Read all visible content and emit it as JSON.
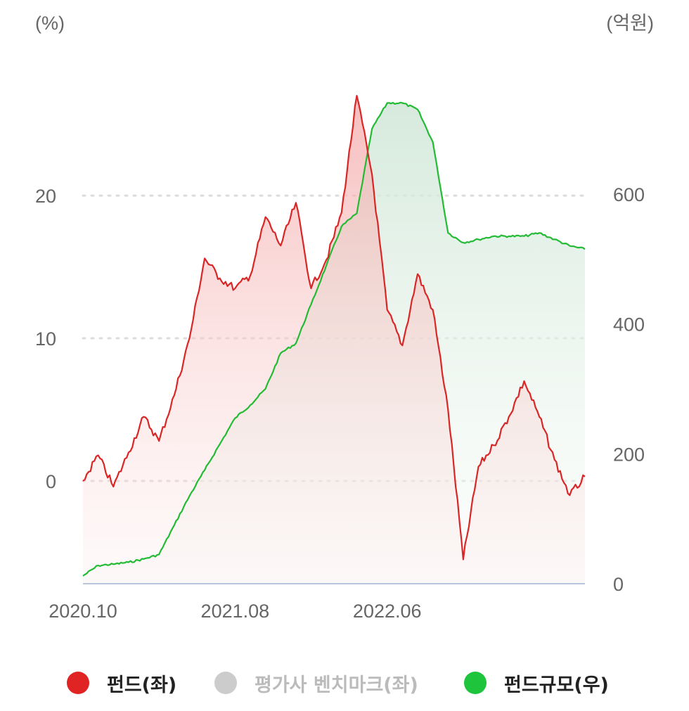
{
  "chart_data": {
    "type": "line",
    "left_axis": {
      "unit_label": "(%)",
      "ticks": [
        0,
        10,
        20
      ],
      "tick_labels": [
        "0",
        "10",
        "20"
      ],
      "range": [
        -7.2,
        27.4
      ]
    },
    "right_axis": {
      "unit_label": "(억원)",
      "ticks": [
        0,
        200,
        400,
        600
      ],
      "tick_labels": [
        "0",
        "200",
        "400",
        "600"
      ],
      "range": [
        0,
        760
      ]
    },
    "x_axis": {
      "tick_labels": [
        "2020.10",
        "2021.08",
        "2022.06"
      ],
      "range": [
        "2020-10",
        "2023-07"
      ]
    },
    "grid": "horizontal dotted at left-axis ticks",
    "legend_position": "bottom",
    "series": [
      {
        "name": "펀드(좌)",
        "axis": "left",
        "color": "#d92626",
        "fill": "area",
        "x": [
          "2020-10",
          "2020-11",
          "2020-12",
          "2021-01",
          "2021-02",
          "2021-03",
          "2021-04",
          "2021-05",
          "2021-06",
          "2021-07",
          "2021-08",
          "2021-09",
          "2021-10",
          "2021-11",
          "2021-12",
          "2022-01",
          "2022-02",
          "2022-03",
          "2022-04",
          "2022-05",
          "2022-06",
          "2022-07",
          "2022-08",
          "2022-09",
          "2022-10",
          "2022-11",
          "2022-12",
          "2023-01",
          "2023-02",
          "2023-03",
          "2023-04",
          "2023-05",
          "2023-06",
          "2023-07"
        ],
        "values": [
          0.0,
          1.8,
          -0.4,
          2.0,
          4.5,
          2.8,
          6.0,
          10.0,
          15.6,
          14.2,
          13.5,
          14.4,
          18.5,
          16.5,
          19.5,
          13.5,
          15.5,
          18.8,
          27.0,
          21.5,
          12.0,
          9.5,
          14.5,
          12.0,
          5.0,
          -5.5,
          1.0,
          2.5,
          4.5,
          7.0,
          4.5,
          1.5,
          -1.0,
          0.3
        ]
      },
      {
        "name": "평가사 벤치마크(좌)",
        "axis": "left",
        "color": "#c8c8c8",
        "fill": "none",
        "x": [],
        "values": []
      },
      {
        "name": "펀드규모(우)",
        "axis": "right",
        "color": "#22bb33",
        "fill": "area",
        "x": [
          "2020-10",
          "2020-11",
          "2020-12",
          "2021-01",
          "2021-02",
          "2021-03",
          "2021-04",
          "2021-05",
          "2021-06",
          "2021-07",
          "2021-08",
          "2021-09",
          "2021-10",
          "2021-11",
          "2021-12",
          "2022-01",
          "2022-02",
          "2022-03",
          "2022-04",
          "2022-05",
          "2022-06",
          "2022-07",
          "2022-08",
          "2022-09",
          "2022-10",
          "2022-11",
          "2022-12",
          "2023-01",
          "2023-02",
          "2023-03",
          "2023-04",
          "2023-05",
          "2023-06",
          "2023-07"
        ],
        "values": [
          12,
          28,
          30,
          33,
          38,
          45,
          90,
          135,
          175,
          215,
          255,
          275,
          300,
          355,
          370,
          430,
          490,
          550,
          570,
          700,
          740,
          740,
          730,
          680,
          540,
          525,
          530,
          535,
          535,
          535,
          540,
          530,
          520,
          515
        ]
      }
    ]
  },
  "legend": [
    {
      "label": "펀드(좌)",
      "color": "#e02424",
      "text_color": "#222222"
    },
    {
      "label": "평가사 벤치마크(좌)",
      "color": "#cccccc",
      "text_color": "#bbbbbb"
    },
    {
      "label": "펀드규모(우)",
      "color": "#1ec43c",
      "text_color": "#222222"
    }
  ]
}
